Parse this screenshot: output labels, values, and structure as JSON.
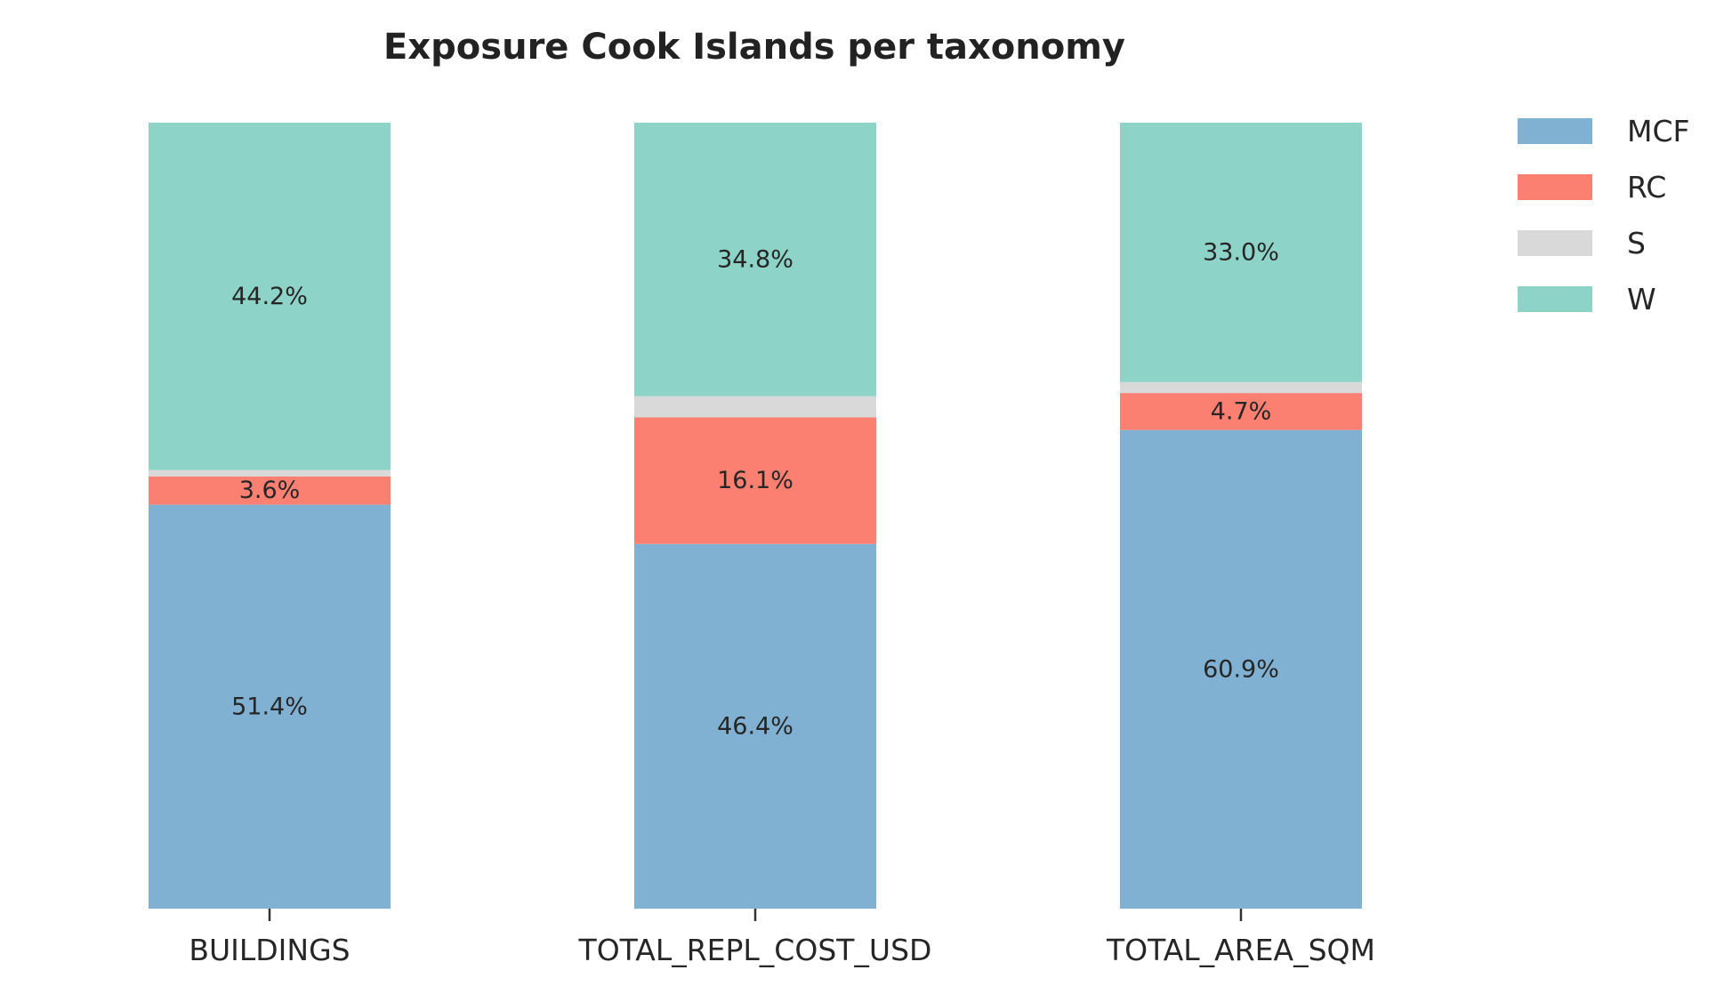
{
  "chart_data": {
    "type": "bar",
    "stacked": true,
    "title": "Exposure Cook Islands per taxonomy",
    "xlabel": "",
    "ylabel": "",
    "ylim": [
      0,
      100
    ],
    "grid": false,
    "legend_position": "top-right",
    "categories": [
      "BUILDINGS",
      "TOTAL_REPL_COST_USD",
      "TOTAL_AREA_SQM"
    ],
    "series": [
      {
        "name": "MCF",
        "color": "#80b1d3",
        "values": [
          51.4,
          46.4,
          60.9
        ],
        "labels": [
          "51.4%",
          "46.4%",
          "60.9%"
        ]
      },
      {
        "name": "RC",
        "color": "#fb8072",
        "values": [
          3.6,
          16.1,
          4.7
        ],
        "labels": [
          "3.6%",
          "16.1%",
          "4.7%"
        ]
      },
      {
        "name": "S",
        "color": "#d9d9d9",
        "values": [
          0.8,
          2.7,
          1.4
        ],
        "labels": [
          "",
          "",
          ""
        ]
      },
      {
        "name": "W",
        "color": "#8dd3c7",
        "values": [
          44.2,
          34.8,
          33.0
        ],
        "labels": [
          "44.2%",
          "34.8%",
          "33.0%"
        ]
      }
    ]
  }
}
